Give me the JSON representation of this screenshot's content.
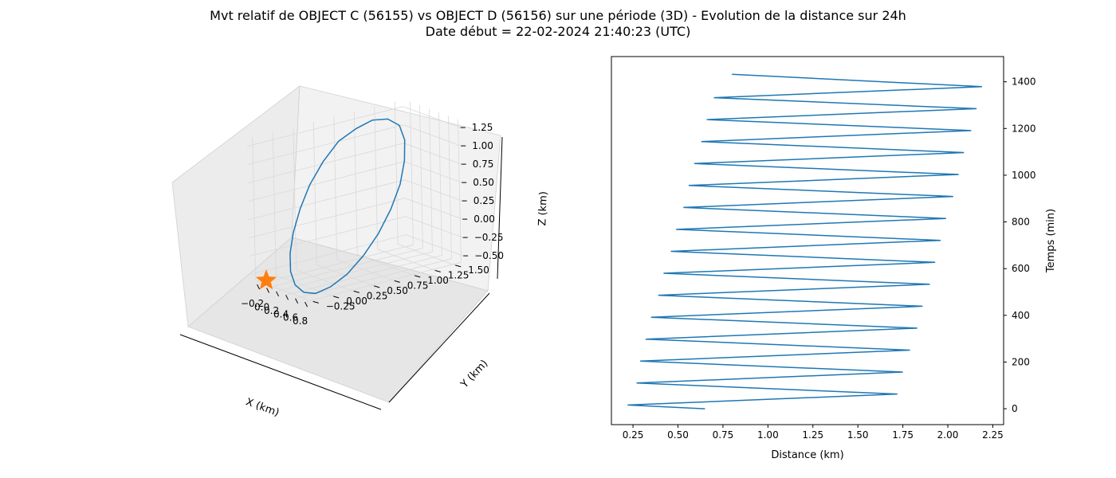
{
  "figure": {
    "title_line1": "Mvt relatif de OBJECT C (56155) vs OBJECT D (56156) sur une période (3D) - Evolution de la distance sur 24h",
    "title_line2": "Date début = 22-02-2024 21:40:23 (UTC)"
  },
  "colors": {
    "series": "#1f77b4",
    "marker": "#ff7f0e",
    "pane": "#f2f2f2",
    "grid": "#d9d9d9"
  },
  "chart_data": [
    {
      "type": "line3d",
      "xlabel": "X (km)",
      "ylabel": "Y (km)",
      "zlabel": "Z (km)",
      "x_ticks": [
        "−0.2",
        "0.0",
        "0.2",
        "0.4",
        "0.6",
        "0.8"
      ],
      "y_ticks": [
        "−0.25",
        "0.00",
        "0.25",
        "0.50",
        "0.75",
        "1.00",
        "1.25",
        "1.50"
      ],
      "z_ticks": [
        "−0.50",
        "−0.25",
        "0.00",
        "0.25",
        "0.50",
        "0.75",
        "1.00",
        "1.25"
      ],
      "grid": true,
      "marker": {
        "shape": "star"
      },
      "series": [
        {
          "style": "closed-loop",
          "x": [
            -0.31,
            -0.29,
            -0.22,
            -0.12,
            0.0,
            0.13,
            0.27,
            0.41,
            0.54,
            0.65,
            0.73,
            0.77,
            0.76,
            0.71,
            0.62,
            0.5,
            0.36,
            0.22,
            0.08,
            -0.06,
            -0.18,
            -0.26
          ],
          "y": [
            0.78,
            0.57,
            0.36,
            0.18,
            0.02,
            -0.1,
            -0.18,
            -0.21,
            -0.18,
            -0.1,
            0.04,
            0.22,
            0.43,
            0.65,
            0.86,
            1.05,
            1.19,
            1.28,
            1.3,
            1.24,
            1.12,
            0.97
          ],
          "z": [
            1.02,
            0.8,
            0.56,
            0.31,
            0.06,
            -0.16,
            -0.35,
            -0.49,
            -0.57,
            -0.58,
            -0.51,
            -0.38,
            -0.19,
            0.04,
            0.29,
            0.55,
            0.8,
            1.02,
            1.18,
            1.25,
            1.24,
            1.15
          ]
        }
      ]
    },
    {
      "type": "line",
      "xlabel": "Distance (km)",
      "ylabel": "Temps (min)",
      "xlim": [
        0.13,
        2.31
      ],
      "ylim": [
        -68,
        1508
      ],
      "x_ticks": [
        0.25,
        0.5,
        0.75,
        1.0,
        1.25,
        1.5,
        1.75,
        2.0,
        2.25
      ],
      "x_tick_labels": [
        "0.25",
        "0.50",
        "0.75",
        "1.00",
        "1.25",
        "1.50",
        "1.75",
        "2.00",
        "2.25"
      ],
      "y_ticks": [
        0,
        200,
        400,
        600,
        800,
        1000,
        1200,
        1400
      ],
      "y_tick_labels": [
        "0",
        "200",
        "400",
        "600",
        "800",
        "1000",
        "1200",
        "1400"
      ],
      "y_axis_side": "right",
      "grid": false,
      "series": [
        {
          "x": [
            0.65,
            0.22,
            1.72,
            0.27,
            1.75,
            0.29,
            1.79,
            0.32,
            1.83,
            0.35,
            1.86,
            0.39,
            1.9,
            0.42,
            1.93,
            0.46,
            1.96,
            0.49,
            1.99,
            0.53,
            2.03,
            0.56,
            2.06,
            0.59,
            2.09,
            0.63,
            2.13,
            0.66,
            2.16,
            0.7,
            2.19,
            0.8
          ],
          "y": [
            0,
            16,
            63,
            110,
            157,
            204,
            251,
            298,
            345,
            392,
            439,
            486,
            533,
            580,
            627,
            674,
            721,
            768,
            815,
            862,
            909,
            956,
            1003,
            1050,
            1097,
            1144,
            1191,
            1238,
            1285,
            1332,
            1379,
            1432
          ]
        }
      ]
    }
  ]
}
